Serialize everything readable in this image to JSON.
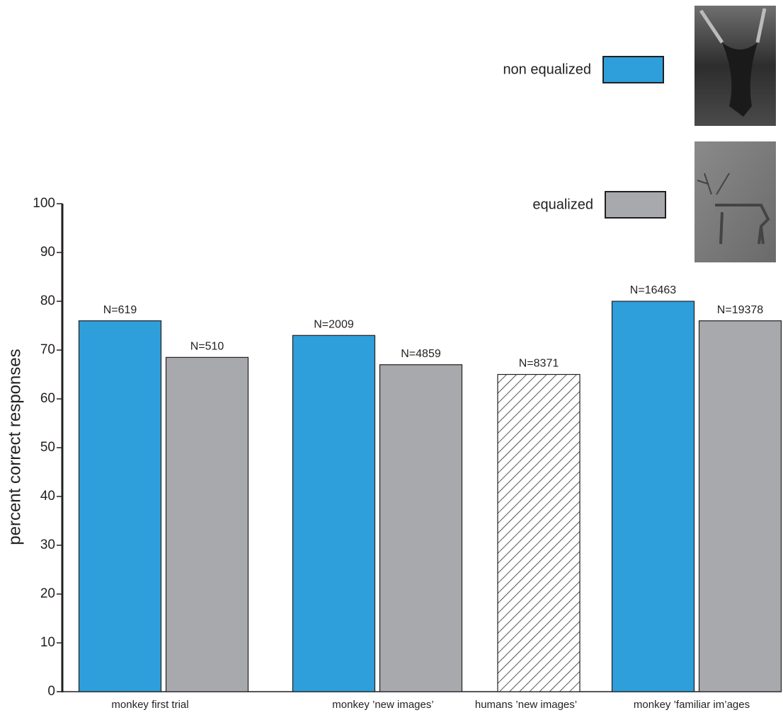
{
  "chart_data": {
    "type": "bar",
    "y_label": "percent correct responses",
    "categories": [
      "monkey first trial",
      "monkey ’new images’",
      "humans ’new images’",
      "monkey ’familiar im’ages"
    ],
    "series": [
      {
        "name": "non equalized",
        "color": "#2e9fdb",
        "values": [
          76,
          73,
          null,
          80
        ],
        "n_labels": [
          "N=619",
          "N=2009",
          null,
          "N=16463"
        ]
      },
      {
        "name": "equalized",
        "color": "#a7a9ac",
        "values": [
          68.5,
          67,
          null,
          76
        ],
        "n_labels": [
          "N=510",
          "N=4859",
          null,
          "N=19378"
        ]
      },
      {
        "pattern": "hatch",
        "values": [
          null,
          null,
          65,
          null
        ],
        "n_labels": [
          null,
          null,
          "N=8371",
          null
        ]
      }
    ],
    "ylim": [
      0,
      100
    ],
    "yticks": [
      0,
      10,
      20,
      30,
      40,
      50,
      60,
      70,
      80,
      90,
      100
    ]
  }
}
